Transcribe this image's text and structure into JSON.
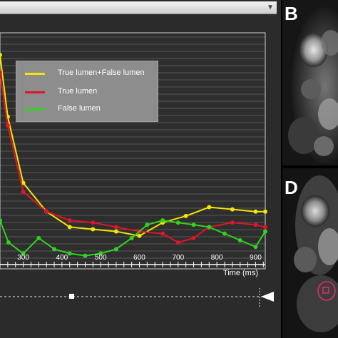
{
  "panels": {
    "b_label": "B",
    "d_label": "D"
  },
  "colors": {
    "combined": "#f2e600",
    "true_lumen": "#e0142a",
    "false_lumen": "#30d21e",
    "legend_bg": "#8d8d8d",
    "roi": "#e0306a"
  },
  "chart_data": {
    "type": "line",
    "xlabel": "Time (ms)",
    "xlim": [
      240,
      925
    ],
    "ylim": [
      -0.05,
      1.0
    ],
    "x_ticks": [
      300,
      400,
      500,
      600,
      700,
      800,
      900
    ],
    "x_tick_labels": [
      "300",
      "400",
      "500",
      "600",
      "700",
      "800",
      "900"
    ],
    "legend_position": "top-left",
    "grid": true,
    "series": [
      {
        "name": "True lumen+False lumen",
        "color_key": "combined",
        "x": [
          240,
          260,
          300,
          360,
          420,
          480,
          540,
          600,
          660,
          720,
          780,
          840,
          900,
          925
        ],
        "y": [
          0.9,
          0.62,
          0.32,
          0.19,
          0.12,
          0.11,
          0.1,
          0.08,
          0.14,
          0.17,
          0.21,
          0.2,
          0.19,
          0.19
        ]
      },
      {
        "name": "True lumen",
        "color_key": "true_lumen",
        "x": [
          240,
          260,
          300,
          360,
          420,
          480,
          540,
          600,
          660,
          700,
          740,
          780,
          840,
          900,
          925
        ],
        "y": [
          0.82,
          0.58,
          0.28,
          0.19,
          0.15,
          0.14,
          0.12,
          0.1,
          0.09,
          0.05,
          0.07,
          0.12,
          0.14,
          0.13,
          0.12
        ]
      },
      {
        "name": "False lumen",
        "color_key": "false_lumen",
        "x": [
          240,
          262,
          300,
          340,
          380,
          420,
          460,
          500,
          540,
          580,
          620,
          660,
          700,
          740,
          780,
          820,
          860,
          900,
          925
        ],
        "y": [
          0.15,
          0.05,
          0.0,
          0.07,
          0.02,
          0.0,
          -0.01,
          0.0,
          0.02,
          0.07,
          0.13,
          0.15,
          0.14,
          0.13,
          0.12,
          0.09,
          0.06,
          0.03,
          0.1
        ]
      }
    ]
  }
}
